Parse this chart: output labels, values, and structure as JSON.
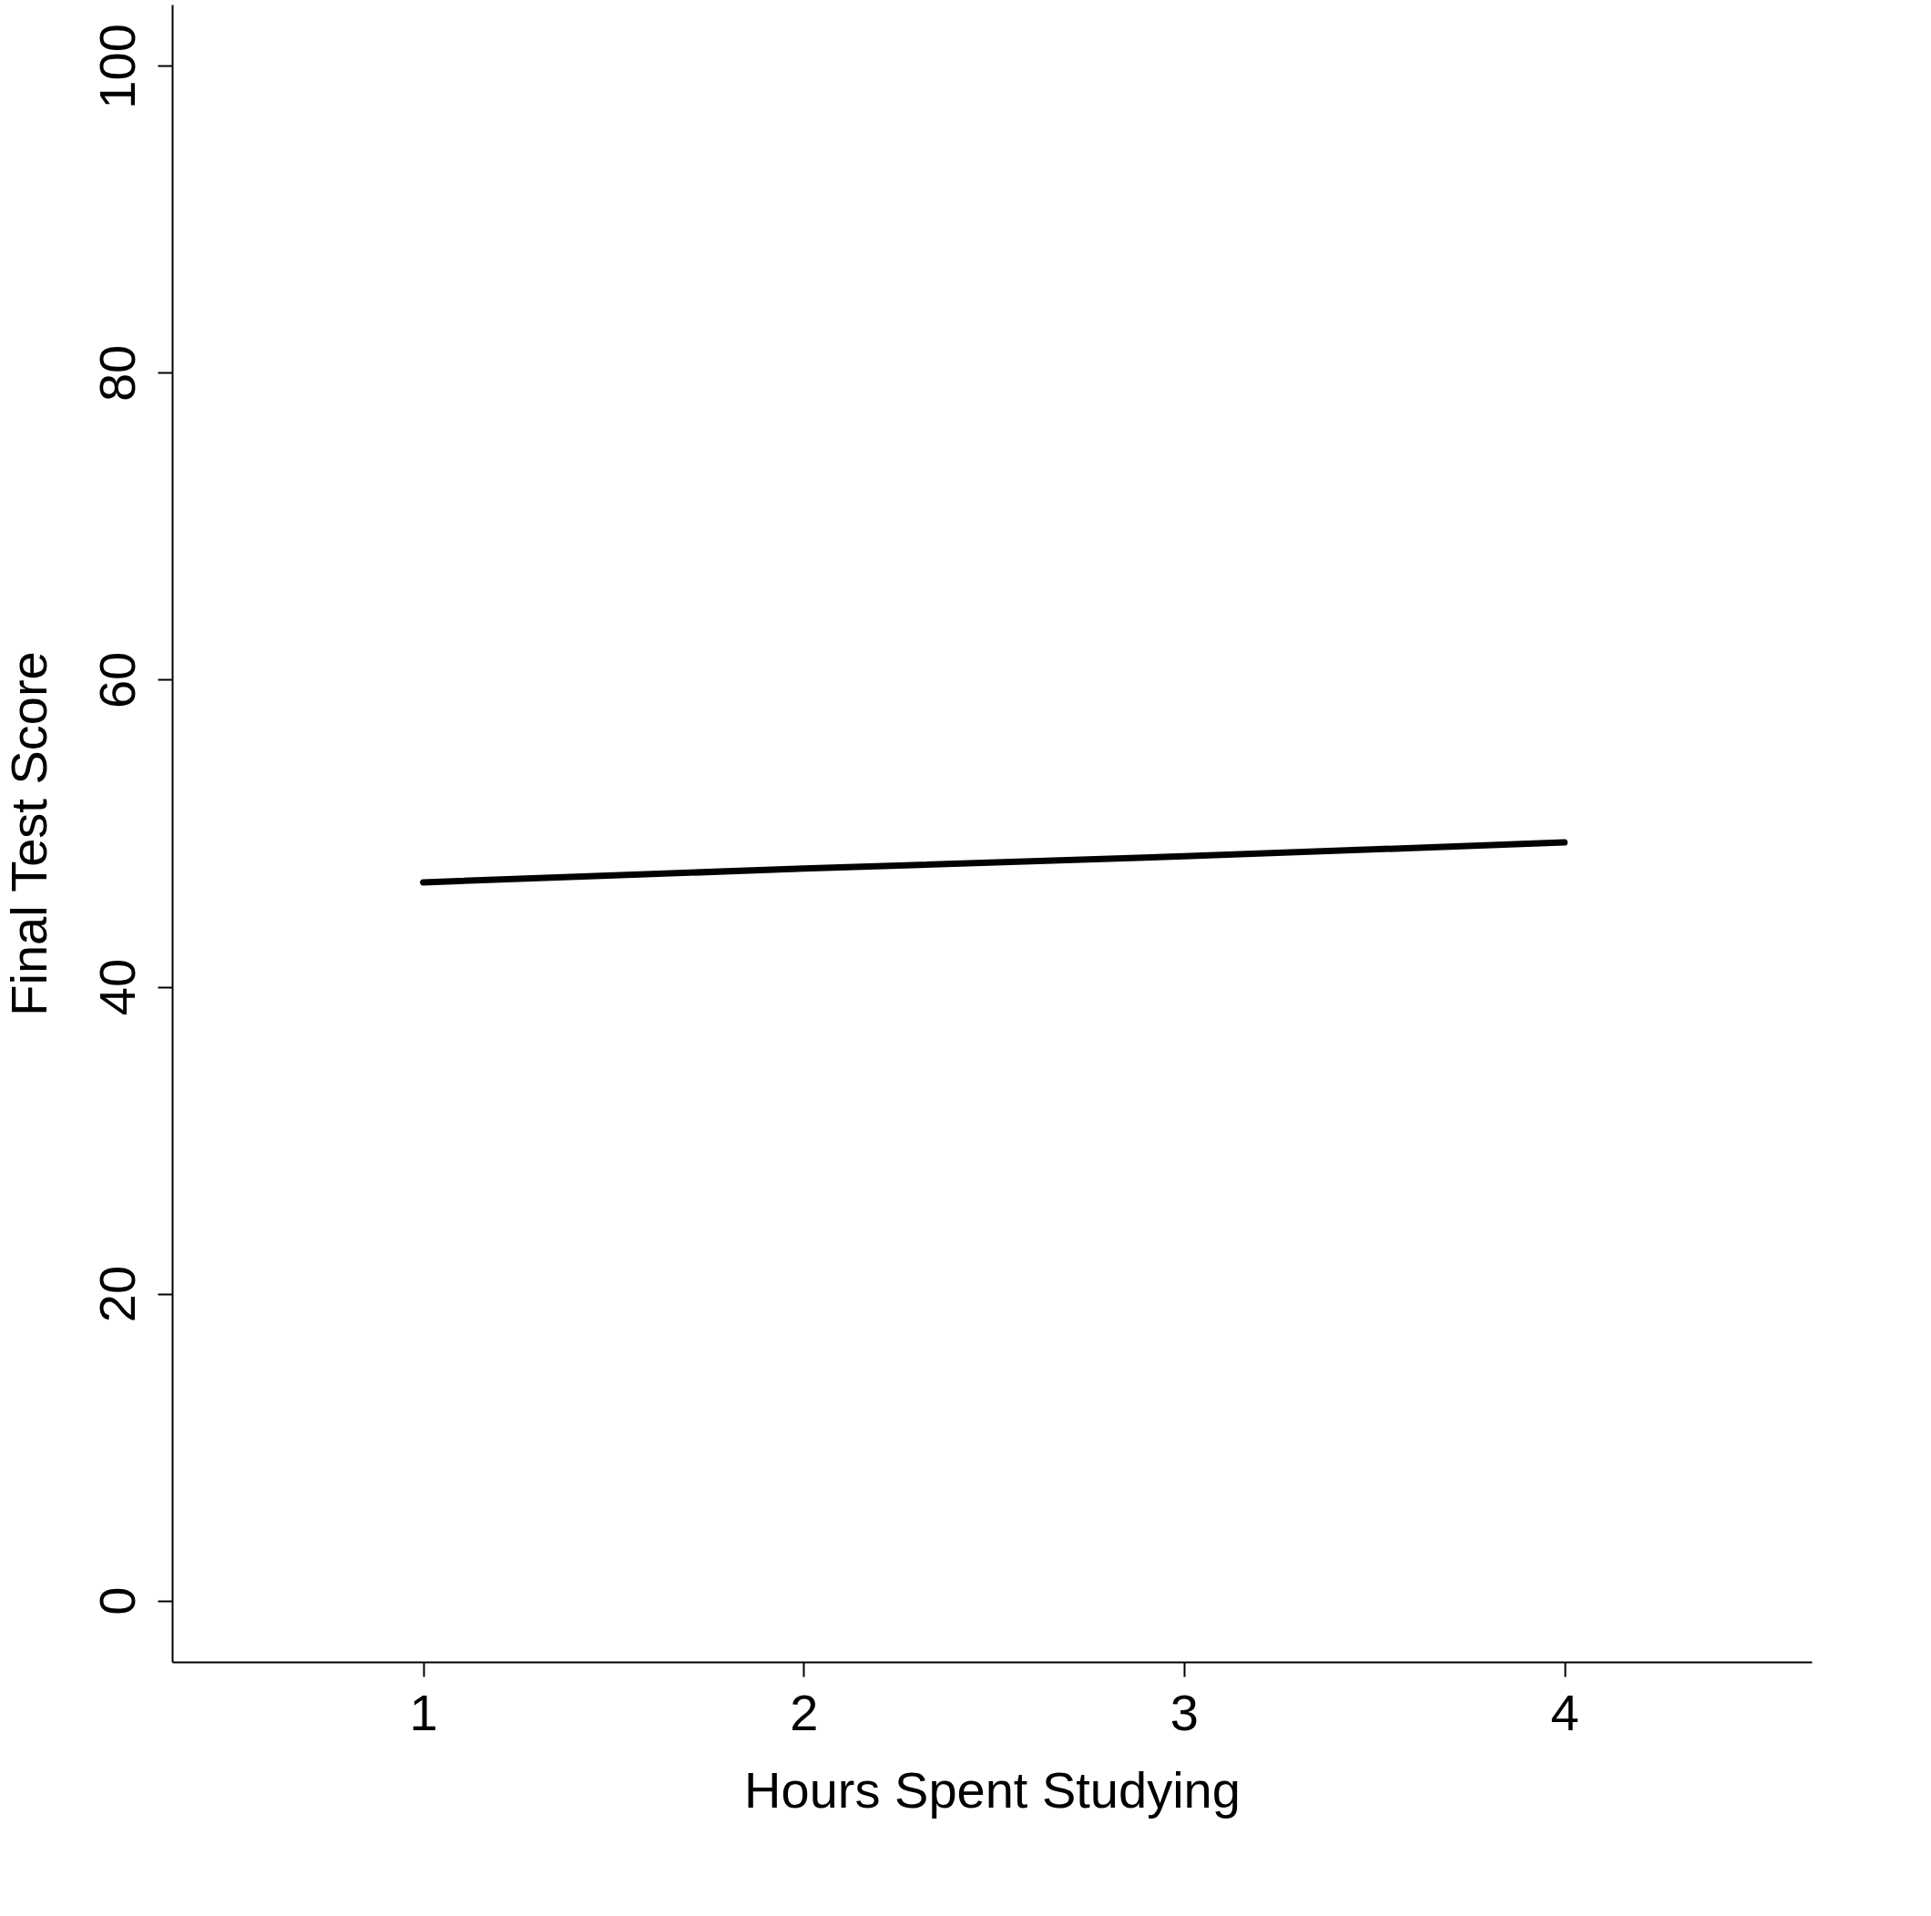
{
  "chart_data": {
    "type": "line",
    "xlabel": "Hours Spent Studying",
    "ylabel": "Final Test Score",
    "x": [
      1,
      2,
      3,
      4
    ],
    "series": [
      {
        "color": "#000000",
        "values": [
          46.8,
          47.7,
          48.5,
          49.4
        ]
      }
    ],
    "xlim": [
      0.34,
      4.65
    ],
    "xticks": [
      1,
      2,
      3,
      4
    ],
    "ylim": [
      -4,
      104
    ],
    "yticks": [
      0,
      20,
      40,
      60,
      80,
      100
    ],
    "grid": false,
    "legend": false,
    "marker": "none",
    "line_style": "solid"
  }
}
